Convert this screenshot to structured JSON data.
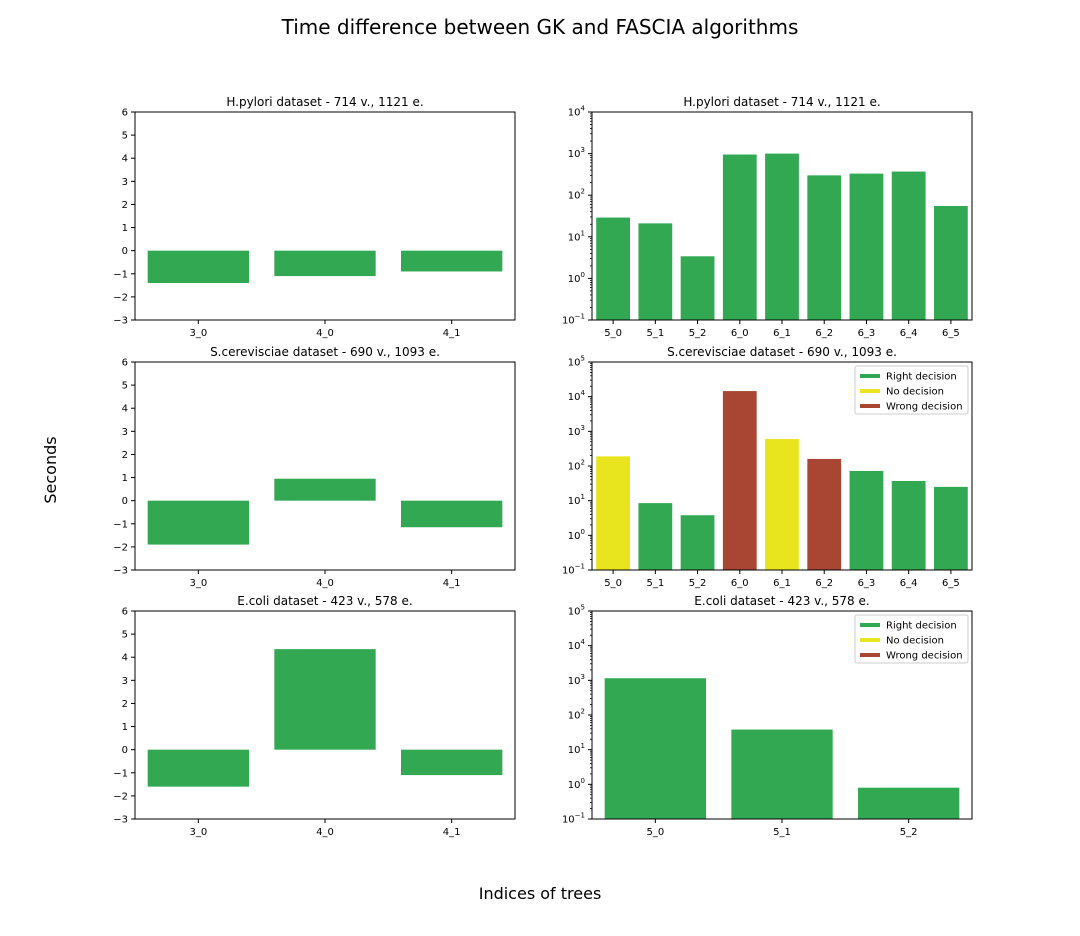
{
  "figure": {
    "suptitle": "Time difference between GK and FASCIA algorithms",
    "xlabel": "Indices of trees",
    "ylabel": "Seconds"
  },
  "legend": {
    "entries": [
      {
        "label": "Right decision",
        "color": "#33a853"
      },
      {
        "label": "No decision",
        "color": "#e8e51e"
      },
      {
        "label": "Wrong decision",
        "color": "#a84533"
      }
    ]
  },
  "chart_data": [
    {
      "type": "bar",
      "title": "H.pylori dataset - 714 v., 1121 e.",
      "scale": "linear",
      "ylim": [
        -3,
        6
      ],
      "yticks": [
        "−3",
        "−2",
        "−1",
        "0",
        "1",
        "2",
        "3",
        "4",
        "5",
        "6"
      ],
      "categories": [
        "3_0",
        "4_0",
        "4_1"
      ],
      "values": [
        -1.4,
        -1.1,
        -0.9
      ],
      "colors": [
        "#33a853",
        "#33a853",
        "#33a853"
      ],
      "legend": false
    },
    {
      "type": "bar",
      "title": "H.pylori dataset - 714 v., 1121 e.",
      "scale": "log",
      "ylim": [
        0.1,
        10000
      ],
      "yticks": [
        [
          "10",
          "−1"
        ],
        [
          "10",
          "0"
        ],
        [
          "10",
          "1"
        ],
        [
          "10",
          "2"
        ],
        [
          "10",
          "3"
        ],
        [
          "10",
          "4"
        ]
      ],
      "categories": [
        "5_0",
        "5_1",
        "5_2",
        "6_0",
        "6_1",
        "6_2",
        "6_3",
        "6_4",
        "6_5"
      ],
      "values": [
        29,
        21,
        3.4,
        950,
        1000,
        300,
        330,
        370,
        55
      ],
      "colors": [
        "#33a853",
        "#33a853",
        "#33a853",
        "#33a853",
        "#33a853",
        "#33a853",
        "#33a853",
        "#33a853",
        "#33a853"
      ],
      "legend": false
    },
    {
      "type": "bar",
      "title": "S.cerevisciae dataset - 690 v., 1093 e.",
      "scale": "linear",
      "ylim": [
        -3,
        6
      ],
      "yticks": [
        "−3",
        "−2",
        "−1",
        "0",
        "1",
        "2",
        "3",
        "4",
        "5",
        "6"
      ],
      "categories": [
        "3_0",
        "4_0",
        "4_1"
      ],
      "values": [
        -1.9,
        0.95,
        -1.15
      ],
      "colors": [
        "#33a853",
        "#33a853",
        "#33a853"
      ],
      "legend": false
    },
    {
      "type": "bar",
      "title": "S.cerevisciae dataset - 690 v., 1093 e.",
      "scale": "log",
      "ylim": [
        0.1,
        100000
      ],
      "yticks": [
        [
          "10",
          "−1"
        ],
        [
          "10",
          "0"
        ],
        [
          "10",
          "1"
        ],
        [
          "10",
          "2"
        ],
        [
          "10",
          "3"
        ],
        [
          "10",
          "4"
        ],
        [
          "10",
          "5"
        ]
      ],
      "categories": [
        "5_0",
        "5_1",
        "5_2",
        "6_0",
        "6_1",
        "6_2",
        "6_3",
        "6_4",
        "6_5"
      ],
      "values": [
        190,
        8.5,
        3.8,
        14500,
        600,
        160,
        72,
        37,
        25
      ],
      "colors": [
        "#e8e51e",
        "#33a853",
        "#33a853",
        "#a84533",
        "#e8e51e",
        "#a84533",
        "#33a853",
        "#33a853",
        "#33a853"
      ],
      "legend": true,
      "legend_position": "top-right"
    },
    {
      "type": "bar",
      "title": "E.coli dataset - 423 v., 578 e.",
      "scale": "linear",
      "ylim": [
        -3,
        6
      ],
      "yticks": [
        "−3",
        "−2",
        "−1",
        "0",
        "1",
        "2",
        "3",
        "4",
        "5",
        "6"
      ],
      "categories": [
        "3_0",
        "4_0",
        "4_1"
      ],
      "values": [
        -1.6,
        4.35,
        -1.1
      ],
      "colors": [
        "#33a853",
        "#33a853",
        "#33a853"
      ],
      "legend": false
    },
    {
      "type": "bar",
      "title": "E.coli dataset - 423 v., 578 e.",
      "scale": "log",
      "ylim": [
        0.1,
        100000
      ],
      "yticks": [
        [
          "10",
          "−1"
        ],
        [
          "10",
          "0"
        ],
        [
          "10",
          "1"
        ],
        [
          "10",
          "2"
        ],
        [
          "10",
          "3"
        ],
        [
          "10",
          "4"
        ],
        [
          "10",
          "5"
        ]
      ],
      "categories": [
        "5_0",
        "5_1",
        "5_2"
      ],
      "values": [
        1150,
        38,
        0.8
      ],
      "colors": [
        "#33a853",
        "#33a853",
        "#33a853"
      ],
      "legend": true,
      "legend_position": "top-right"
    }
  ]
}
